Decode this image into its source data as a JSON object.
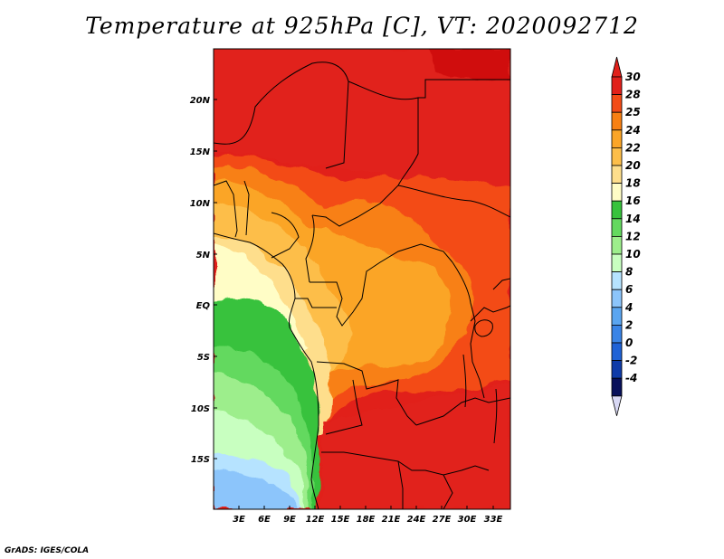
{
  "title": "Temperature at 925hPa [C], VT: 2020092712",
  "footer": "GrADS: IGES/COLA",
  "latitude_labels": [
    "20N",
    "15N",
    "10N",
    "5N",
    "EQ",
    "5S",
    "10S",
    "15S"
  ],
  "longitude_labels": [
    "3E",
    "6E",
    "9E",
    "12E",
    "15E",
    "18E",
    "21E",
    "24E",
    "27E",
    "30E",
    "33E"
  ],
  "colorbar": {
    "labels": [
      "30",
      "28",
      "25",
      "24",
      "22",
      "20",
      "18",
      "16",
      "14",
      "12",
      "10",
      "8",
      "6",
      "4",
      "2",
      "0",
      "-2",
      "-4"
    ],
    "colors": [
      "#e1201a",
      "#f34b16",
      "#f88012",
      "#fba527",
      "#fdbe4a",
      "#fede8c",
      "#fffdc6",
      "#37c23c",
      "#64d95f",
      "#9dee8c",
      "#c8ffc0",
      "#b6e3ff",
      "#8cc5fb",
      "#5aa5f0",
      "#3a84e6",
      "#1f62d6",
      "#0f3ba8",
      "#08105a"
    ],
    "top_cap_color": "#e1201a",
    "bottom_cap_color": "#d8d8f4"
  }
}
